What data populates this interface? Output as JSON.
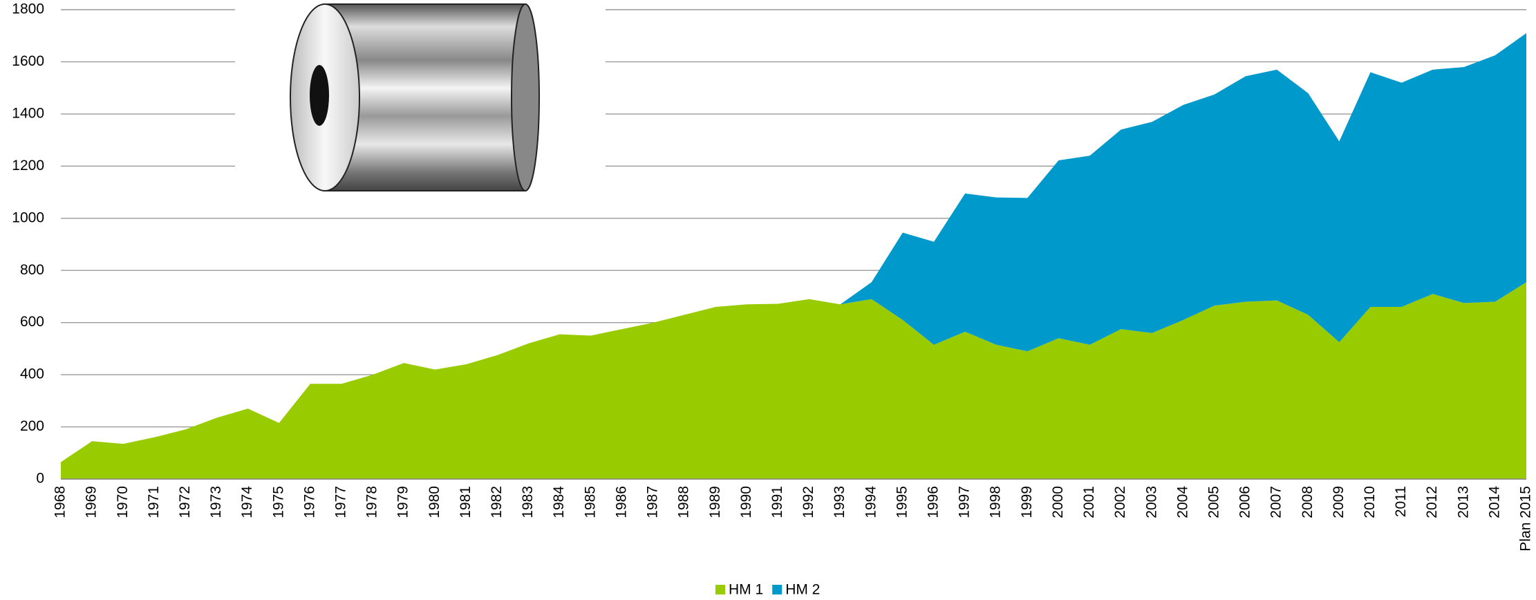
{
  "chart_data": {
    "type": "area",
    "categories": [
      "1968",
      "1969",
      "1970",
      "1971",
      "1972",
      "1973",
      "1974",
      "1975",
      "1976",
      "1977",
      "1978",
      "1979",
      "1980",
      "1981",
      "1982",
      "1983",
      "1984",
      "1985",
      "1986",
      "1987",
      "1988",
      "1989",
      "1990",
      "1991",
      "1992",
      "1993",
      "1994",
      "1995",
      "1996",
      "1997",
      "1998",
      "1999",
      "2000",
      "2001",
      "2002",
      "2003",
      "2004",
      "2005",
      "2006",
      "2007",
      "2008",
      "2009",
      "2010",
      "2011",
      "2012",
      "2013",
      "2014",
      "Plan 2015"
    ],
    "series": [
      {
        "name": "HM 1",
        "color": "#99cc00",
        "values": [
          65,
          145,
          135,
          160,
          190,
          235,
          270,
          215,
          365,
          365,
          400,
          445,
          420,
          440,
          475,
          520,
          555,
          550,
          575,
          600,
          630,
          660,
          670,
          672,
          690,
          670,
          690,
          610,
          515,
          565,
          515,
          490,
          540,
          515,
          575,
          560,
          610,
          665,
          680,
          685,
          630,
          525,
          660,
          660,
          710,
          675,
          680,
          755
        ]
      },
      {
        "name": "HM 2",
        "color": "#0099cc",
        "values": [
          null,
          null,
          null,
          null,
          null,
          null,
          null,
          null,
          null,
          null,
          null,
          null,
          null,
          null,
          null,
          null,
          null,
          null,
          null,
          null,
          null,
          null,
          null,
          null,
          null,
          0,
          65,
          335,
          395,
          530,
          565,
          588,
          682,
          725,
          765,
          810,
          825,
          810,
          865,
          885,
          850,
          770,
          900,
          860,
          860,
          905,
          945,
          955
        ]
      }
    ],
    "stacked": true,
    "ylim": [
      0,
      1800
    ],
    "yticks": [
      0,
      200,
      400,
      600,
      800,
      1000,
      1200,
      1400,
      1600,
      1800
    ],
    "grid": true,
    "legend": "bottom"
  }
}
